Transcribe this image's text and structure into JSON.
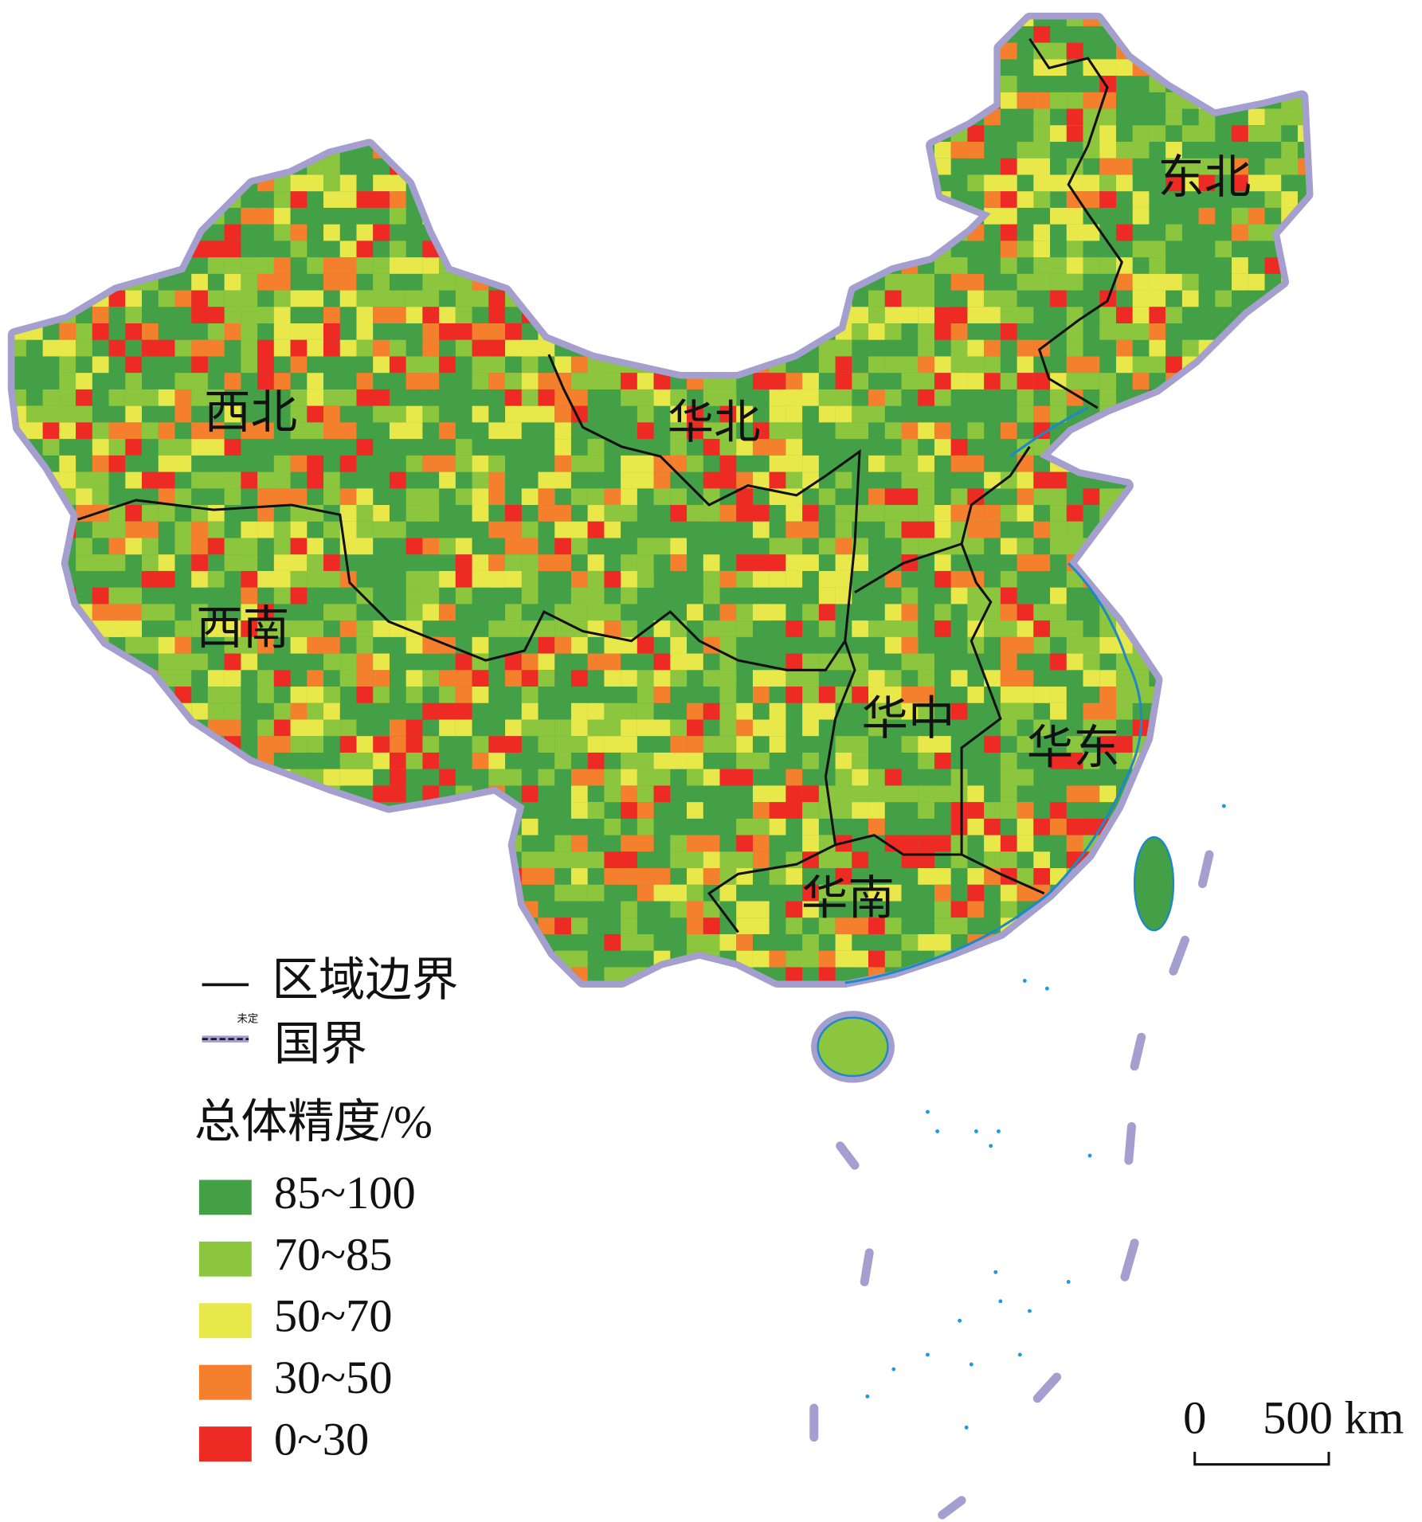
{
  "regions": [
    {
      "label": "西北"
    },
    {
      "label": "华北"
    },
    {
      "label": "东北"
    },
    {
      "label": "西南"
    },
    {
      "label": "华中"
    },
    {
      "label": "华东"
    },
    {
      "label": "华南"
    }
  ],
  "legend": {
    "boundary": "区域边界",
    "national": "国界",
    "undetermined": "未定",
    "title": "总体精度/%",
    "classes": [
      {
        "label": "85~100",
        "color": "#43a047"
      },
      {
        "label": "70~85",
        "color": "#8cc63f"
      },
      {
        "label": "50~70",
        "color": "#e8e84a"
      },
      {
        "label": "30~50",
        "color": "#f47f2c"
      },
      {
        "label": "0~30",
        "color": "#ee2a24"
      }
    ]
  },
  "scale_bar": {
    "start": "0",
    "end": "500 km"
  }
}
